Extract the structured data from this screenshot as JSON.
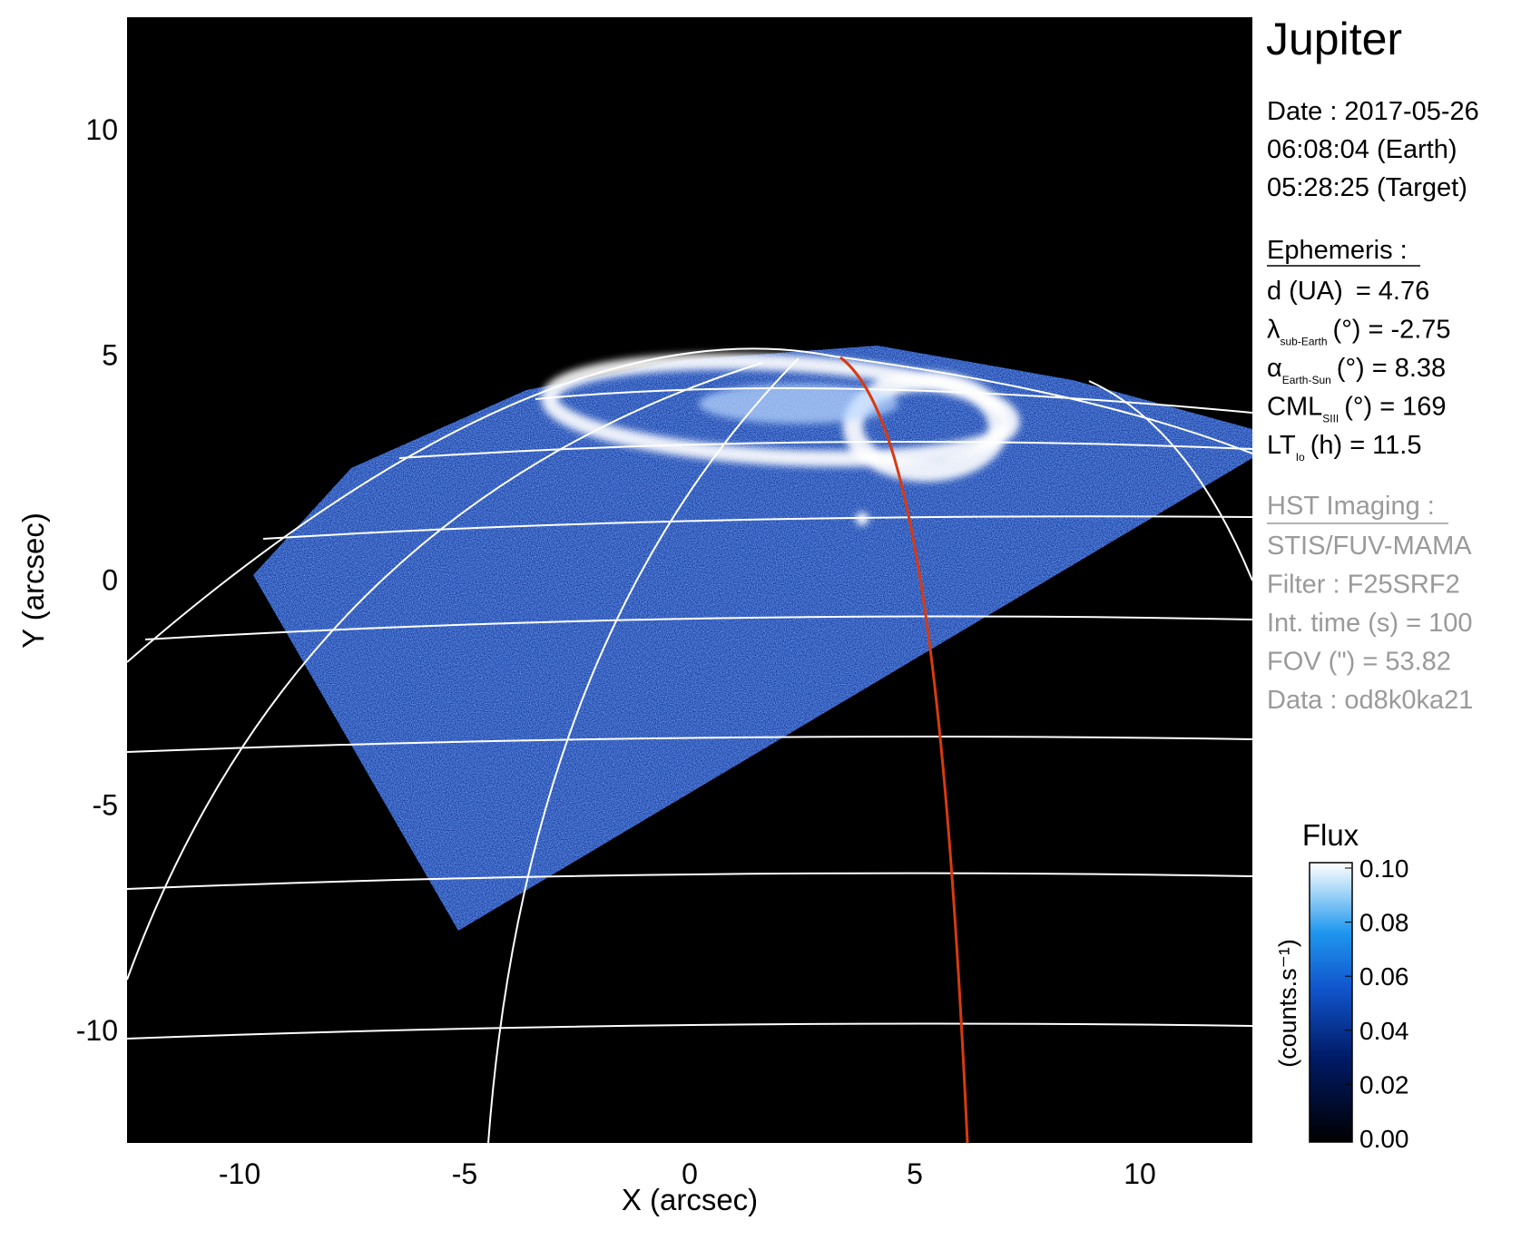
{
  "chart_data": {
    "type": "image",
    "title": "Jupiter",
    "xlabel": "X (arcsec)",
    "ylabel": "Y (arcsec)",
    "xlim": [
      -12.5,
      12.5
    ],
    "ylim": [
      -12.5,
      12.5
    ],
    "xticks": [
      -10,
      -5,
      0,
      5,
      10
    ],
    "yticks": [
      -10,
      -5,
      0,
      5,
      10
    ],
    "observation": [
      "Date : 2017-05-26",
      "06:08:04 (Earth)",
      "05:28:25 (Target)"
    ],
    "ephemeris_title": "Ephemeris :",
    "ephemeris": [
      {
        "name": "d (UA)",
        "unit": "   =",
        "value": 4.76
      },
      {
        "name": "λ",
        "subscript": "sub-Earth",
        "unit": "(°) =",
        "value": -2.75
      },
      {
        "name": "α",
        "subscript": "Earth-Sun",
        "unit": "(°) =",
        "value": 8.38
      },
      {
        "name": "CML",
        "subscript": "SIII",
        "unit": "(°) =",
        "value": 169
      },
      {
        "name": "LT",
        "subscript": "Io",
        "unit": "(h) =",
        "value": 11.5
      }
    ],
    "imaging_title": "HST Imaging :",
    "imaging": [
      "STIS/FUV-MAMA",
      "Filter : F25SRF2",
      "Int. time (s) = 100",
      "FOV (\") = 53.82",
      "Data : od8k0ka21"
    ],
    "colorbar": {
      "title": "Flux",
      "label": "(counts.s⁻¹)",
      "lim": [
        0,
        0.1
      ],
      "ticks": [
        {
          "value": 0,
          "label": "0.00"
        },
        {
          "value": 0.02,
          "label": "0.02"
        },
        {
          "value": 0.04,
          "label": "0.04"
        },
        {
          "value": 0.06,
          "label": "0.06"
        },
        {
          "value": 0.08,
          "label": "0.08"
        },
        {
          "value": 0.1,
          "label": "0.10"
        }
      ]
    }
  }
}
